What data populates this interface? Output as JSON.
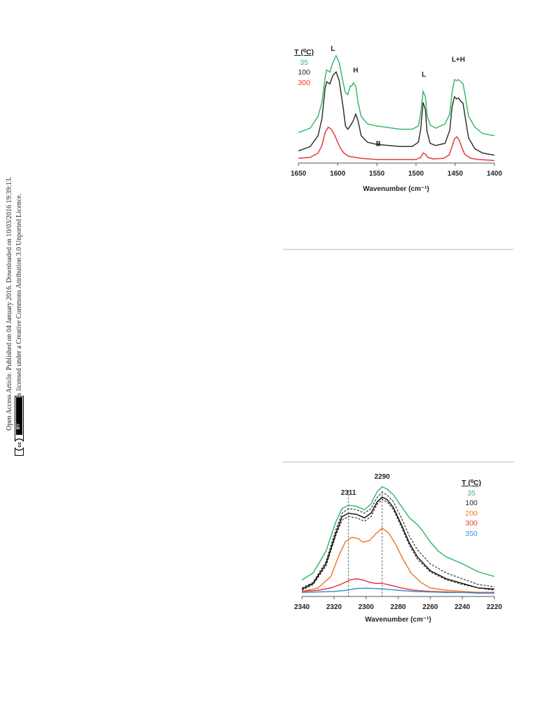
{
  "sidebar": {
    "line1": "Open Access Article. Published on 04 January 2016. Downloaded on 10/03/2016 19:39:13.",
    "line2": "This article is licensed under a Creative Commons Attribution 3.0 Unported Licence.",
    "license_badge": {
      "cc": "cc",
      "by": "BY"
    }
  },
  "colors": {
    "green": "#3ab86b",
    "black": "#333333",
    "red": "#e8383b",
    "orange": "#f07a2c",
    "blue": "#3f8fd1",
    "rule": "#dedcd2"
  },
  "chart_data": [
    {
      "type": "line",
      "title": "",
      "xlabel": "Wavenumber (cm⁻¹)",
      "ylabel": "",
      "xlim": [
        1650,
        1400
      ],
      "x_reversed": true,
      "y_axis_visible": false,
      "xticks": [
        "1650",
        "1600",
        "1550",
        "1500",
        "1450",
        "1400"
      ],
      "xtick_values": [
        1650,
        1600,
        1550,
        1500,
        1450,
        1400
      ],
      "legend": {
        "title": "T (⁰C)",
        "position": "top-left",
        "entries": [
          {
            "label": "35",
            "color": "#3ab86b"
          },
          {
            "label": "100",
            "color": "#333333"
          },
          {
            "label": "300",
            "color": "#e8383b"
          }
        ]
      },
      "annotations": [
        {
          "text": "L",
          "x": 1606,
          "y": 1.0
        },
        {
          "text": "H",
          "x": 1577,
          "y": 0.8
        },
        {
          "text": "B",
          "x": 1548,
          "y": 0.12
        },
        {
          "text": "L",
          "x": 1490,
          "y": 0.76
        },
        {
          "text": "L+H",
          "x": 1446,
          "y": 0.9
        }
      ],
      "series": [
        {
          "name": "35",
          "color": "#3ab86b",
          "dashed": false,
          "x": [
            1650,
            1635,
            1625,
            1620,
            1616,
            1614,
            1610,
            1606,
            1602,
            1598,
            1593,
            1590,
            1587,
            1584,
            1582,
            1580,
            1577,
            1574,
            1570,
            1562,
            1550,
            1520,
            1505,
            1497,
            1494,
            1491,
            1488,
            1486,
            1482,
            1475,
            1463,
            1457,
            1454,
            1451,
            1448,
            1446,
            1443,
            1440,
            1437,
            1433,
            1425,
            1415,
            1400
          ],
          "y": [
            0.27,
            0.31,
            0.42,
            0.55,
            0.78,
            0.85,
            0.83,
            0.92,
            0.98,
            0.92,
            0.73,
            0.64,
            0.62,
            0.7,
            0.7,
            0.73,
            0.7,
            0.55,
            0.42,
            0.35,
            0.33,
            0.3,
            0.3,
            0.33,
            0.45,
            0.65,
            0.6,
            0.43,
            0.34,
            0.31,
            0.35,
            0.44,
            0.64,
            0.76,
            0.75,
            0.76,
            0.74,
            0.72,
            0.6,
            0.42,
            0.32,
            0.26,
            0.24
          ]
        },
        {
          "name": "100",
          "color": "#333333",
          "dashed": false,
          "x": [
            1650,
            1635,
            1625,
            1620,
            1616,
            1614,
            1610,
            1606,
            1602,
            1598,
            1593,
            1590,
            1587,
            1584,
            1580,
            1577,
            1574,
            1570,
            1562,
            1550,
            1520,
            1505,
            1497,
            1494,
            1491,
            1488,
            1486,
            1482,
            1475,
            1463,
            1457,
            1454,
            1451,
            1448,
            1446,
            1443,
            1440,
            1437,
            1433,
            1425,
            1415,
            1400
          ],
          "y": [
            0.1,
            0.14,
            0.24,
            0.4,
            0.68,
            0.74,
            0.72,
            0.8,
            0.83,
            0.75,
            0.5,
            0.33,
            0.3,
            0.33,
            0.38,
            0.44,
            0.38,
            0.24,
            0.18,
            0.16,
            0.14,
            0.14,
            0.18,
            0.3,
            0.55,
            0.48,
            0.28,
            0.17,
            0.15,
            0.17,
            0.29,
            0.51,
            0.6,
            0.58,
            0.59,
            0.56,
            0.54,
            0.4,
            0.22,
            0.12,
            0.08,
            0.06
          ]
        },
        {
          "name": "300",
          "color": "#e8383b",
          "dashed": false,
          "x": [
            1650,
            1635,
            1625,
            1620,
            1616,
            1612,
            1608,
            1604,
            1600,
            1596,
            1592,
            1586,
            1578,
            1570,
            1550,
            1520,
            1500,
            1494,
            1491,
            1488,
            1485,
            1478,
            1465,
            1458,
            1454,
            1451,
            1448,
            1445,
            1442,
            1438,
            1430,
            1420,
            1400
          ],
          "y": [
            0.03,
            0.04,
            0.08,
            0.15,
            0.27,
            0.32,
            0.3,
            0.25,
            0.18,
            0.12,
            0.08,
            0.05,
            0.04,
            0.03,
            0.02,
            0.02,
            0.02,
            0.04,
            0.08,
            0.07,
            0.04,
            0.025,
            0.03,
            0.06,
            0.14,
            0.21,
            0.23,
            0.2,
            0.14,
            0.07,
            0.03,
            0.02,
            0.01
          ]
        }
      ]
    },
    {
      "type": "line",
      "title": "",
      "xlabel": "Wavenumber (cm⁻¹)",
      "ylabel": "",
      "xlim": [
        2340,
        2220
      ],
      "x_reversed": true,
      "y_axis_visible": false,
      "xticks": [
        "2340",
        "2320",
        "2300",
        "2280",
        "2260",
        "2240",
        "2220"
      ],
      "xtick_values": [
        2340,
        2320,
        2300,
        2280,
        2260,
        2240,
        2220
      ],
      "legend": {
        "title": "T (⁰C)",
        "position": "top-right",
        "entries": [
          {
            "label": "35",
            "color": "#3ab86b"
          },
          {
            "label": "100",
            "color": "#222222"
          },
          {
            "label": "200",
            "color": "#f07a2c"
          },
          {
            "label": "300",
            "color": "#e8383b"
          },
          {
            "label": "350",
            "color": "#3f8fd1"
          }
        ]
      },
      "annotations": [
        {
          "text": "2311",
          "x": 2311
        },
        {
          "text": "2290",
          "x": 2290
        }
      ],
      "reference_lines": [
        2311,
        2290
      ],
      "series": [
        {
          "name": "35",
          "color": "#3ab86b",
          "dashed": false,
          "x": [
            2340,
            2333,
            2325,
            2319,
            2315,
            2311,
            2306,
            2301,
            2297,
            2293,
            2290,
            2287,
            2283,
            2278,
            2273,
            2268,
            2265,
            2260,
            2255,
            2250,
            2240,
            2230,
            2220
          ],
          "y": [
            0.12,
            0.18,
            0.37,
            0.62,
            0.74,
            0.77,
            0.76,
            0.73,
            0.78,
            0.89,
            0.93,
            0.91,
            0.86,
            0.76,
            0.66,
            0.6,
            0.55,
            0.45,
            0.37,
            0.32,
            0.26,
            0.19,
            0.15
          ]
        },
        {
          "name": "",
          "color": "#222222",
          "dashed": true,
          "x": [
            2340,
            2333,
            2325,
            2319,
            2315,
            2311,
            2306,
            2301,
            2297,
            2293,
            2290,
            2287,
            2283,
            2278,
            2273,
            2268,
            2260,
            2250,
            2240,
            2230,
            2220
          ],
          "y": [
            0.05,
            0.1,
            0.28,
            0.55,
            0.7,
            0.74,
            0.73,
            0.7,
            0.74,
            0.84,
            0.88,
            0.86,
            0.8,
            0.66,
            0.5,
            0.38,
            0.26,
            0.18,
            0.13,
            0.08,
            0.06
          ]
        },
        {
          "name": "100",
          "color": "#111111",
          "dashed": false,
          "x": [
            2340,
            2333,
            2325,
            2319,
            2315,
            2311,
            2306,
            2301,
            2297,
            2293,
            2290,
            2287,
            2283,
            2278,
            2273,
            2268,
            2260,
            2250,
            2240,
            2230,
            2220
          ],
          "y": [
            0.04,
            0.09,
            0.26,
            0.52,
            0.67,
            0.7,
            0.69,
            0.66,
            0.7,
            0.8,
            0.84,
            0.82,
            0.75,
            0.6,
            0.44,
            0.32,
            0.2,
            0.13,
            0.09,
            0.05,
            0.04
          ]
        },
        {
          "name": "",
          "color": "#222222",
          "dashed": true,
          "x": [
            2340,
            2333,
            2325,
            2319,
            2315,
            2311,
            2306,
            2301,
            2297,
            2293,
            2290,
            2287,
            2283,
            2278,
            2273,
            2268,
            2260,
            2250,
            2240,
            2230,
            2220
          ],
          "y": [
            0.03,
            0.08,
            0.24,
            0.5,
            0.64,
            0.67,
            0.66,
            0.63,
            0.67,
            0.78,
            0.82,
            0.8,
            0.73,
            0.58,
            0.42,
            0.3,
            0.19,
            0.12,
            0.08,
            0.05,
            0.03
          ]
        },
        {
          "name": "200",
          "color": "#f07a2c",
          "dashed": false,
          "x": [
            2340,
            2330,
            2322,
            2317,
            2313,
            2309,
            2305,
            2302,
            2298,
            2294,
            2290,
            2286,
            2282,
            2277,
            2272,
            2266,
            2260,
            2250,
            2240,
            2230,
            2220
          ],
          "y": [
            0.02,
            0.05,
            0.15,
            0.33,
            0.45,
            0.49,
            0.48,
            0.45,
            0.46,
            0.52,
            0.57,
            0.53,
            0.44,
            0.3,
            0.18,
            0.1,
            0.05,
            0.03,
            0.02,
            0.01,
            0.01
          ]
        },
        {
          "name": "300",
          "color": "#e8383b",
          "dashed": false,
          "x": [
            2340,
            2330,
            2322,
            2316,
            2310,
            2306,
            2302,
            2298,
            2294,
            2290,
            2285,
            2278,
            2270,
            2260,
            2250,
            2240,
            2230,
            2220
          ],
          "y": [
            0.02,
            0.03,
            0.05,
            0.08,
            0.12,
            0.13,
            0.12,
            0.1,
            0.09,
            0.09,
            0.075,
            0.05,
            0.03,
            0.02,
            0.015,
            0.01,
            0.01,
            0.01
          ]
        },
        {
          "name": "350",
          "color": "#3f8fd1",
          "dashed": false,
          "x": [
            2340,
            2330,
            2320,
            2312,
            2306,
            2300,
            2294,
            2288,
            2280,
            2270,
            2260,
            2250,
            2240,
            2230,
            2220
          ],
          "y": [
            0.01,
            0.015,
            0.02,
            0.03,
            0.045,
            0.048,
            0.045,
            0.04,
            0.03,
            0.02,
            0.015,
            0.01,
            0.01,
            0.005,
            0.005
          ]
        }
      ]
    }
  ]
}
